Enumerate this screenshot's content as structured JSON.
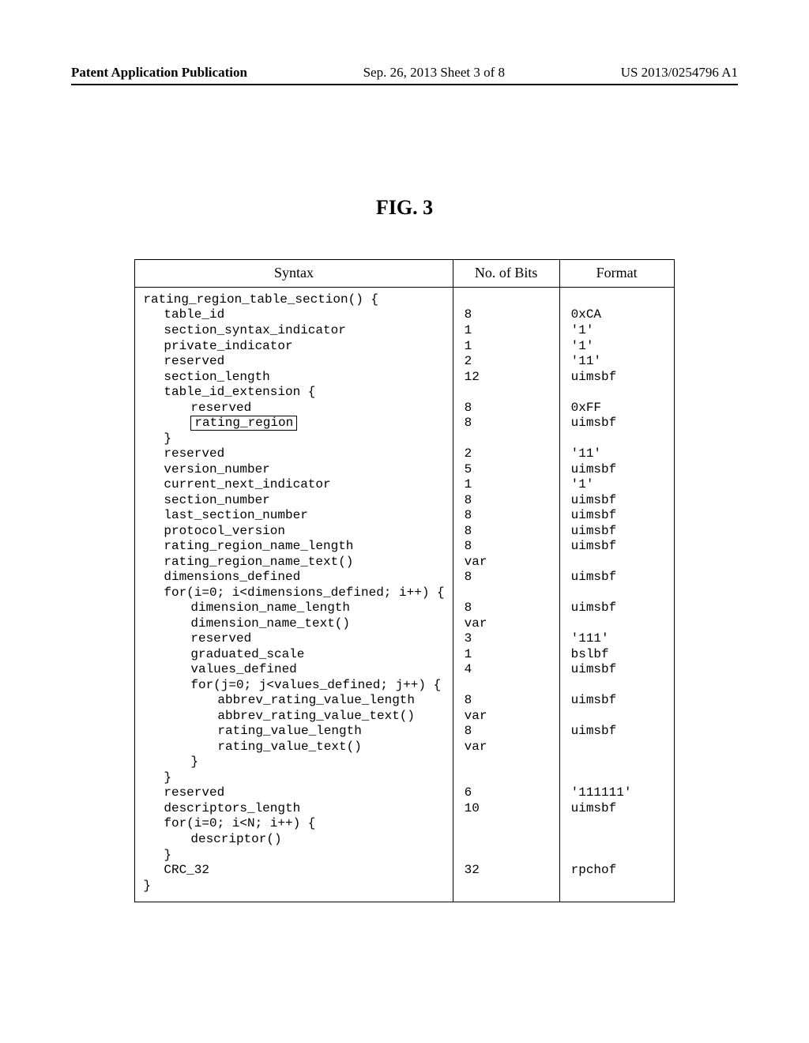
{
  "header": {
    "left": "Patent Application Publication",
    "center": "Sep. 26, 2013  Sheet 3 of 8",
    "right": "US 2013/0254796 A1"
  },
  "figure_title": "FIG. 3",
  "table": {
    "columns": [
      "Syntax",
      "No. of Bits",
      "Format"
    ],
    "rows": [
      {
        "syntax": "rating_region_table_section() {",
        "indent": 0,
        "bits": "",
        "format": ""
      },
      {
        "syntax": "table_id",
        "indent": 1,
        "bits": "8",
        "format": "0xCA"
      },
      {
        "syntax": "section_syntax_indicator",
        "indent": 1,
        "bits": "1",
        "format": "'1'"
      },
      {
        "syntax": "private_indicator",
        "indent": 1,
        "bits": "1",
        "format": "'1'"
      },
      {
        "syntax": "reserved",
        "indent": 1,
        "bits": "2",
        "format": "'11'"
      },
      {
        "syntax": "section_length",
        "indent": 1,
        "bits": "12",
        "format": "uimsbf"
      },
      {
        "syntax": "table_id_extension {",
        "indent": 1,
        "bits": "",
        "format": ""
      },
      {
        "syntax": "reserved",
        "indent": 2,
        "bits": "8",
        "format": "0xFF"
      },
      {
        "syntax": "rating_region",
        "indent": 2,
        "boxed": true,
        "bits": "8",
        "format": "uimsbf"
      },
      {
        "syntax": "}",
        "indent": 1,
        "bits": "",
        "format": ""
      },
      {
        "syntax": "reserved",
        "indent": 1,
        "bits": "2",
        "format": "'11'"
      },
      {
        "syntax": "version_number",
        "indent": 1,
        "bits": "5",
        "format": "uimsbf"
      },
      {
        "syntax": "current_next_indicator",
        "indent": 1,
        "bits": "1",
        "format": "'1'"
      },
      {
        "syntax": "section_number",
        "indent": 1,
        "bits": "8",
        "format": "uimsbf"
      },
      {
        "syntax": "last_section_number",
        "indent": 1,
        "bits": "8",
        "format": "uimsbf"
      },
      {
        "syntax": "protocol_version",
        "indent": 1,
        "bits": "8",
        "format": "uimsbf"
      },
      {
        "syntax": "rating_region_name_length",
        "indent": 1,
        "bits": "8",
        "format": "uimsbf"
      },
      {
        "syntax": "rating_region_name_text()",
        "indent": 1,
        "bits": "var",
        "format": ""
      },
      {
        "syntax": "dimensions_defined",
        "indent": 1,
        "bits": "8",
        "format": "uimsbf"
      },
      {
        "syntax": "for(i=0; i<dimensions_defined; i++) {",
        "indent": 1,
        "bits": "",
        "format": ""
      },
      {
        "syntax": "dimension_name_length",
        "indent": 2,
        "bits": "8",
        "format": "uimsbf"
      },
      {
        "syntax": "dimension_name_text()",
        "indent": 2,
        "bits": "var",
        "format": ""
      },
      {
        "syntax": "reserved",
        "indent": 2,
        "bits": "3",
        "format": "'111'"
      },
      {
        "syntax": "graduated_scale",
        "indent": 2,
        "bits": "1",
        "format": "bslbf"
      },
      {
        "syntax": "values_defined",
        "indent": 2,
        "bits": "4",
        "format": "uimsbf"
      },
      {
        "syntax": "for(j=0; j<values_defined; j++) {",
        "indent": 2,
        "bits": "",
        "format": ""
      },
      {
        "syntax": "abbrev_rating_value_length",
        "indent": 3,
        "bits": "8",
        "format": "uimsbf"
      },
      {
        "syntax": "abbrev_rating_value_text()",
        "indent": 3,
        "bits": "var",
        "format": ""
      },
      {
        "syntax": "rating_value_length",
        "indent": 3,
        "bits": "8",
        "format": "uimsbf"
      },
      {
        "syntax": "rating_value_text()",
        "indent": 3,
        "bits": "var",
        "format": ""
      },
      {
        "syntax": "}",
        "indent": 2,
        "bits": "",
        "format": ""
      },
      {
        "syntax": "}",
        "indent": 1,
        "bits": "",
        "format": ""
      },
      {
        "syntax": "reserved",
        "indent": 1,
        "bits": "6",
        "format": "'111111'"
      },
      {
        "syntax": "descriptors_length",
        "indent": 1,
        "bits": "10",
        "format": "uimsbf"
      },
      {
        "syntax": "for(i=0; i<N; i++) {",
        "indent": 1,
        "bits": "",
        "format": ""
      },
      {
        "syntax": "descriptor()",
        "indent": 2,
        "bits": "",
        "format": ""
      },
      {
        "syntax": "}",
        "indent": 1,
        "bits": "",
        "format": ""
      },
      {
        "syntax": "CRC_32",
        "indent": 1,
        "bits": "32",
        "format": "rpchof"
      },
      {
        "syntax": "}",
        "indent": 0,
        "bits": "",
        "format": ""
      }
    ]
  }
}
